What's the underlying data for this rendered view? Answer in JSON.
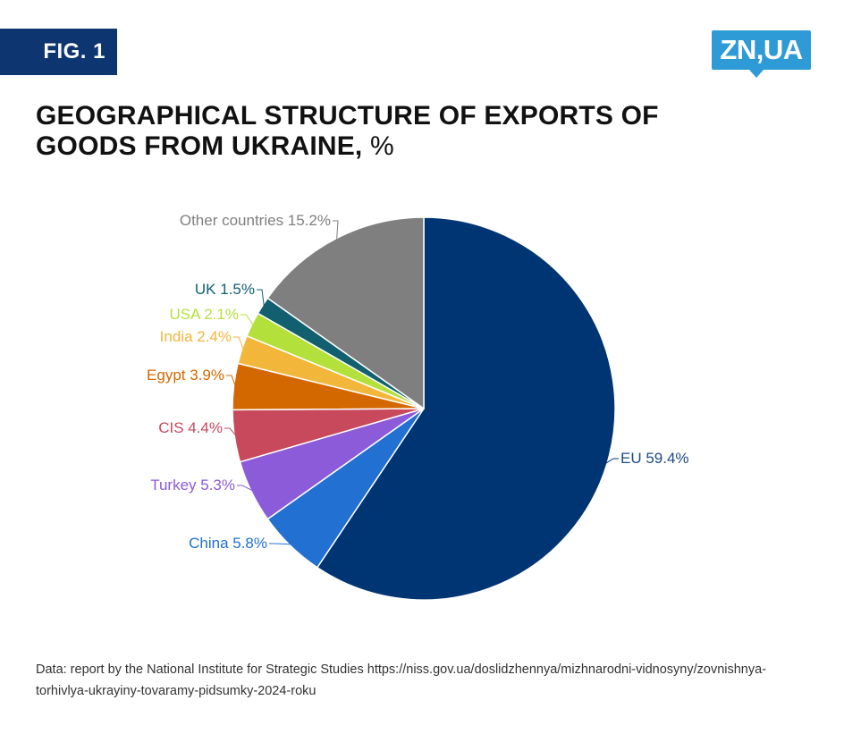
{
  "header": {
    "fig_label": "FIG. 1",
    "logo_text": "ZN,UA"
  },
  "title": {
    "main": "GEOGRAPHICAL STRUCTURE OF EXPORTS OF GOODS FROM UKRAINE,",
    "unit": "%"
  },
  "source": {
    "text": "Data: report by the National Institute for Strategic Studies https://niss.gov.ua/doslidzhennya/mizhnarodni-vidnosyny/zovnishnya-torhivlya-ukrayiny-tovaramy-pidsumky-2024-roku"
  },
  "colors": {
    "fig_tag": "#0d3670",
    "logo": "#2f9bd6"
  },
  "chart_data": {
    "type": "pie",
    "title": "GEOGRAPHICAL STRUCTURE OF EXPORTS OF GOODS FROM UKRAINE, %",
    "start": "12 o'clock",
    "direction": "clockwise",
    "slices": [
      {
        "name": "EU",
        "value": 59.4,
        "label": "EU 59.4%",
        "color": "#003574"
      },
      {
        "name": "China",
        "value": 5.8,
        "label": "China 5.8%",
        "color": "#2170d2"
      },
      {
        "name": "Turkey",
        "value": 5.3,
        "label": "Turkey 5.3%",
        "color": "#8b5bd9"
      },
      {
        "name": "CIS",
        "value": 4.4,
        "label": "CIS 4.4%",
        "color": "#c8485c"
      },
      {
        "name": "Egypt",
        "value": 3.9,
        "label": "Egypt 3.9%",
        "color": "#d46800"
      },
      {
        "name": "India",
        "value": 2.4,
        "label": "India 2.4%",
        "color": "#f2b63b"
      },
      {
        "name": "USA",
        "value": 2.1,
        "label": "USA 2.1%",
        "color": "#b4e03c"
      },
      {
        "name": "UK",
        "value": 1.5,
        "label": "UK 1.5%",
        "color": "#12606f"
      },
      {
        "name": "Other countries",
        "value": 15.2,
        "label": "Other countries 15.2%",
        "color": "#7f7f7f"
      }
    ]
  }
}
